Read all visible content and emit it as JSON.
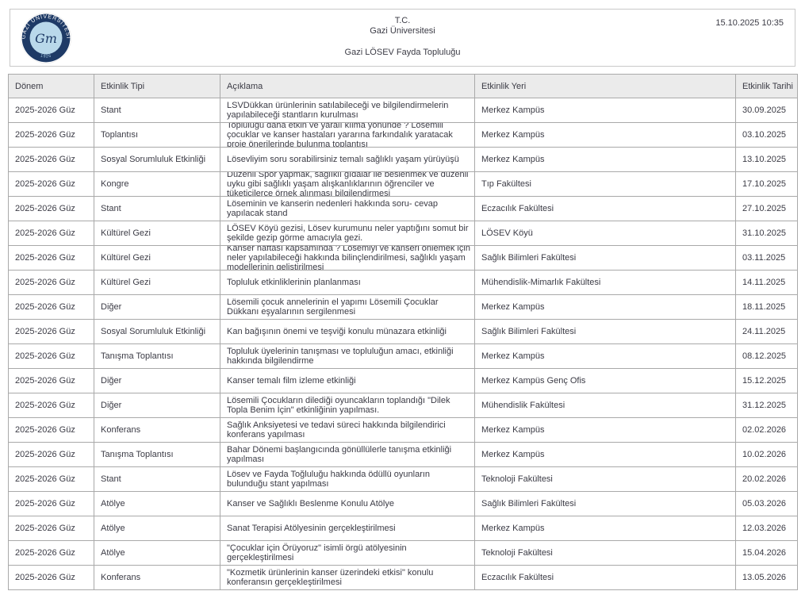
{
  "header": {
    "logo": {
      "ring_text": "GAZİ ÜNİVERSİTESİ",
      "year": "1926",
      "monogram": "Gm"
    },
    "title_line1": "T.C.",
    "title_line2": "Gazi Üniversitesi",
    "subtitle": "Gazi LÖSEV Fayda Topluluğu",
    "timestamp": "15.10.2025 10:35"
  },
  "colors": {
    "logo_navy": "#1e3a66",
    "logo_inner_blue": "#b9d8ea",
    "logo_year_blue": "#a8cbe0",
    "text": "#3b3b45",
    "table_border": "#a9a9a9",
    "table_header_bg": "#ebebeb"
  },
  "table": {
    "columns": [
      "Dönem",
      "Etkinlik Tipi",
      "Açıklama",
      "Etkinlik Yeri",
      "Etkinlik Tarihi"
    ],
    "rows": [
      [
        "2025-2026 Güz",
        "Stant",
        "LSVDükkan ürünlerinin satılabileceği ve bilgilendirmelerin yapılabileceği stantların kurulması",
        "Merkez Kampüs",
        "30.09.2025"
      ],
      [
        "2025-2026 Güz",
        "Toplantısı",
        "Topluluğu daha etkin ve yaralı kılma yönünde ? Lösemili çocuklar ve kanser hastaları yararına farkındalık yaratacak proje önerilerinde bulunma toplantısı",
        "Merkez Kampüs",
        "03.10.2025"
      ],
      [
        "2025-2026 Güz",
        "Sosyal Sorumluluk Etkinliği",
        "Lösevliyim soru sorabilirsiniz temalı sağlıklı yaşam yürüyüşü",
        "Merkez Kampüs",
        "13.10.2025"
      ],
      [
        "2025-2026 Güz",
        "Kongre",
        "Düzenli Spor yapmak, sağlıklı gıdalar ile beslenmek ve düzenli uyku gibi sağlıklı yaşam alışkanlıklarının öğrenciler ve tüketicilerce örnek alınması bilgilendirmesi",
        "Tıp Fakültesi",
        "17.10.2025"
      ],
      [
        "2025-2026 Güz",
        "Stant",
        "Löseminin ve kanserin nedenleri hakkında soru- cevap yapılacak stand",
        "Eczacılık Fakültesi",
        "27.10.2025"
      ],
      [
        "2025-2026 Güz",
        "Kültürel Gezi",
        "LÖSEV Köyü gezisi, Lösev kurumunu neler yaptığını somut bir şekilde gezip görme amacıyla gezi.",
        "LÖSEV Köyü",
        "31.10.2025"
      ],
      [
        "2025-2026 Güz",
        "Kültürel Gezi",
        "Kanser haftası kapsamında ? Lösemiyi ve kanseri önlemek için neler yapılabileceği hakkında bilinçlendirilmesi, sağlıklı yaşam modellerinin geliştirilmesi",
        "Sağlık Bilimleri Fakültesi",
        "03.11.2025"
      ],
      [
        "2025-2026 Güz",
        "Kültürel Gezi",
        "Topluluk etkinliklerinin planlanması",
        "Mühendislik-Mimarlık Fakültesi",
        "14.11.2025"
      ],
      [
        "2025-2026 Güz",
        "Diğer",
        "Lösemili çocuk annelerinin el yapımı Lösemili Çocuklar Dükkanı eşyalarının sergilenmesi",
        "Merkez Kampüs",
        "18.11.2025"
      ],
      [
        "2025-2026 Güz",
        "Sosyal Sorumluluk Etkinliği",
        "Kan bağışının önemi ve teşviği konulu münazara etkinliği",
        "Sağlık Bilimleri Fakültesi",
        "24.11.2025"
      ],
      [
        "2025-2026 Güz",
        "Tanışma Toplantısı",
        "Topluluk üyelerinin tanışması ve topluluğun amacı, etkinliği hakkında bilgilendirme",
        "Merkez Kampüs",
        "08.12.2025"
      ],
      [
        "2025-2026 Güz",
        "Diğer",
        "Kanser temalı film izleme etkinliği",
        "Merkez Kampüs Genç Ofis",
        "15.12.2025"
      ],
      [
        "2025-2026 Güz",
        "Diğer",
        "Lösemili Çocukların dilediği oyuncakların toplandığı \"Dilek Topla Benim İçin\" etkinliğinin yapılması.",
        "Mühendislik Fakültesi",
        "31.12.2025"
      ],
      [
        "2025-2026 Güz",
        "Konferans",
        "Sağlık Anksiyetesi ve tedavi süreci hakkında bilgilendirici konferans yapılması",
        "Merkez Kampüs",
        "02.02.2026"
      ],
      [
        "2025-2026 Güz",
        "Tanışma Toplantısı",
        "Bahar Dönemi başlangıcında gönüllülerle tanışma etkinliği yapılması",
        "Merkez Kampüs",
        "10.02.2026"
      ],
      [
        "2025-2026 Güz",
        "Stant",
        "Lösev ve Fayda Toğluluğu hakkında ödüllü oyunların bulunduğu stant yapılması",
        "Teknoloji Fakültesi",
        "20.02.2026"
      ],
      [
        "2025-2026 Güz",
        "Atölye",
        "Kanser ve Sağlıklı Beslenme Konulu Atölye",
        "Sağlık Bilimleri Fakültesi",
        "05.03.2026"
      ],
      [
        "2025-2026 Güz",
        "Atölye",
        "Sanat Terapisi Atölyesinin gerçekleştirilmesi",
        "Merkez Kampüs",
        "12.03.2026"
      ],
      [
        "2025-2026 Güz",
        "Atölye",
        "\"Çocuklar için Örüyoruz\" isimli örgü atölyesinin gerçekleştirilmesi",
        "Teknoloji Fakültesi",
        "15.04.2026"
      ],
      [
        "2025-2026 Güz",
        "Konferans",
        "\"Kozmetik ürünlerinin kanser üzerindeki etkisi\" konulu konferansın gerçekleştirilmesi",
        "Eczacılık Fakültesi",
        "13.05.2026"
      ]
    ]
  }
}
